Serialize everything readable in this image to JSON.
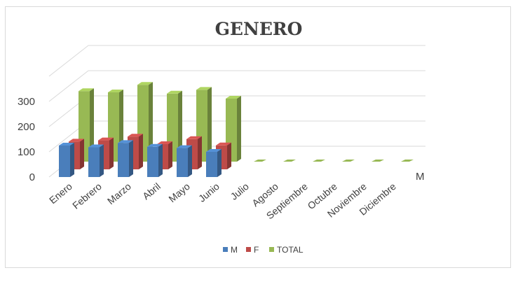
{
  "chart_data": {
    "type": "bar",
    "title": "GENERO",
    "categories": [
      "Enero",
      "Febrero",
      "Marzo",
      "Abril",
      "Mayo",
      "Junio",
      "Julio",
      "Agosto",
      "Septiembre",
      "Octubre",
      "Noviembre",
      "Diciembre"
    ],
    "series": [
      {
        "name": "M",
        "values": [
          125,
          118,
          135,
          120,
          115,
          100,
          0,
          0,
          0,
          0,
          0,
          0
        ],
        "color": "#4a7ebb"
      },
      {
        "name": "F",
        "values": [
          110,
          115,
          130,
          100,
          120,
          95,
          0,
          0,
          0,
          0,
          0,
          0
        ],
        "color": "#be4b48"
      },
      {
        "name": "TOTAL",
        "values": [
          280,
          275,
          305,
          270,
          285,
          250,
          0,
          0,
          0,
          0,
          0,
          0
        ],
        "color": "#98b954"
      }
    ],
    "yticks": [
      0,
      100,
      200,
      300
    ],
    "ylim": [
      0,
      300
    ],
    "depth_axis_label": "M",
    "legend_position": "bottom",
    "grid": true,
    "style": "3d-column"
  }
}
